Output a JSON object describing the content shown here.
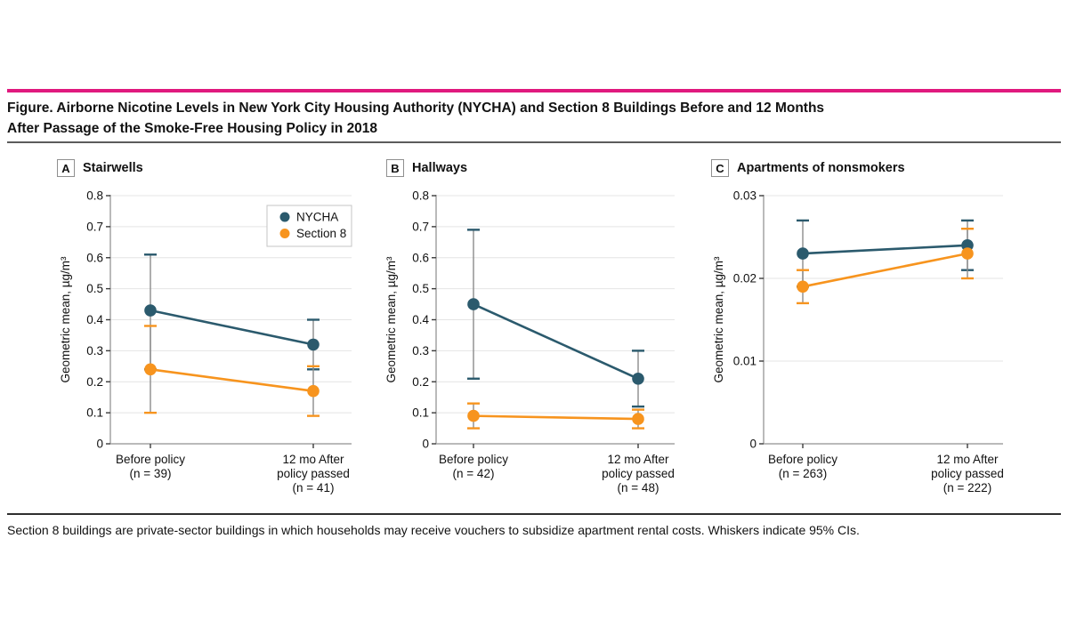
{
  "figure": {
    "title_line1": "Figure. Airborne Nicotine Levels in New York City Housing Authority (NYCHA) and Section 8 Buildings Before and 12 Months",
    "title_line2": "After Passage of the Smoke-Free Housing Policy in 2018",
    "footnote": "Section 8 buildings are private-sector buildings in which households may receive vouchers to subsidize apartment rental costs. Whiskers indicate 95% CIs."
  },
  "colors": {
    "accent_rule": "#e0197e",
    "nycha": "#2b5a6d",
    "section8": "#f7941e",
    "axis": "#a3a3a3",
    "grid": "#e4e4e4",
    "whisker": "#8c8c8c",
    "tick": "#3a3a3a",
    "text": "#111111"
  },
  "legend": {
    "items": [
      {
        "label": "NYCHA",
        "color": "#2b5a6d"
      },
      {
        "label": "Section 8",
        "color": "#f7941e"
      }
    ],
    "position": "top-right inside panel A"
  },
  "chart_data": [
    {
      "type": "line",
      "panel_letter": "A",
      "panel_title": "Stairwells",
      "ylabel": "Geometric mean, µg/m³",
      "xlabel": "",
      "grid": true,
      "legend": true,
      "ylim": [
        0,
        0.8
      ],
      "yticks": [
        {
          "v": 0,
          "label": "0"
        },
        {
          "v": 0.1,
          "label": "0.1"
        },
        {
          "v": 0.2,
          "label": "0.2"
        },
        {
          "v": 0.3,
          "label": "0.3"
        },
        {
          "v": 0.4,
          "label": "0.4"
        },
        {
          "v": 0.5,
          "label": "0.5"
        },
        {
          "v": 0.6,
          "label": "0.6"
        },
        {
          "v": 0.7,
          "label": "0.7"
        },
        {
          "v": 0.8,
          "label": "0.8"
        }
      ],
      "categories": [
        [
          "Before policy",
          "(n = 39)"
        ],
        [
          "12 mo After",
          "policy passed",
          "(n = 41)"
        ]
      ],
      "series": [
        {
          "name": "NYCHA",
          "color": "#2b5a6d",
          "values": [
            0.43,
            0.32
          ],
          "ci_low": [
            0.24,
            0.24
          ],
          "ci_high": [
            0.61,
            0.4
          ]
        },
        {
          "name": "Section 8",
          "color": "#f7941e",
          "values": [
            0.24,
            0.17
          ],
          "ci_low": [
            0.1,
            0.09
          ],
          "ci_high": [
            0.38,
            0.25
          ]
        }
      ]
    },
    {
      "type": "line",
      "panel_letter": "B",
      "panel_title": "Hallways",
      "ylabel": "Geometric mean, µg/m³",
      "xlabel": "",
      "grid": true,
      "legend": false,
      "ylim": [
        0,
        0.8
      ],
      "yticks": [
        {
          "v": 0,
          "label": "0"
        },
        {
          "v": 0.1,
          "label": "0.1"
        },
        {
          "v": 0.2,
          "label": "0.2"
        },
        {
          "v": 0.3,
          "label": "0.3"
        },
        {
          "v": 0.4,
          "label": "0.4"
        },
        {
          "v": 0.5,
          "label": "0.5"
        },
        {
          "v": 0.6,
          "label": "0.6"
        },
        {
          "v": 0.7,
          "label": "0.7"
        },
        {
          "v": 0.8,
          "label": "0.8"
        }
      ],
      "categories": [
        [
          "Before policy",
          "(n = 42)"
        ],
        [
          "12 mo After",
          "policy passed",
          "(n = 48)"
        ]
      ],
      "series": [
        {
          "name": "NYCHA",
          "color": "#2b5a6d",
          "values": [
            0.45,
            0.21
          ],
          "ci_low": [
            0.21,
            0.12
          ],
          "ci_high": [
            0.69,
            0.3
          ]
        },
        {
          "name": "Section 8",
          "color": "#f7941e",
          "values": [
            0.09,
            0.08
          ],
          "ci_low": [
            0.05,
            0.05
          ],
          "ci_high": [
            0.13,
            0.11
          ]
        }
      ]
    },
    {
      "type": "line",
      "panel_letter": "C",
      "panel_title": "Apartments of nonsmokers",
      "ylabel": "Geometric mean, µg/m³",
      "xlabel": "",
      "grid": true,
      "legend": false,
      "ylim": [
        0,
        0.03
      ],
      "yticks": [
        {
          "v": 0,
          "label": "0"
        },
        {
          "v": 0.01,
          "label": "0.01"
        },
        {
          "v": 0.02,
          "label": "0.02"
        },
        {
          "v": 0.03,
          "label": "0.03"
        }
      ],
      "categories": [
        [
          "Before policy",
          "(n = 263)"
        ],
        [
          "12 mo After",
          "policy passed",
          "(n = 222)"
        ]
      ],
      "series": [
        {
          "name": "NYCHA",
          "color": "#2b5a6d",
          "values": [
            0.023,
            0.024
          ],
          "ci_low": [
            0.019,
            0.021
          ],
          "ci_high": [
            0.027,
            0.027
          ]
        },
        {
          "name": "Section 8",
          "color": "#f7941e",
          "values": [
            0.019,
            0.023
          ],
          "ci_low": [
            0.017,
            0.02
          ],
          "ci_high": [
            0.021,
            0.026
          ]
        }
      ]
    }
  ]
}
